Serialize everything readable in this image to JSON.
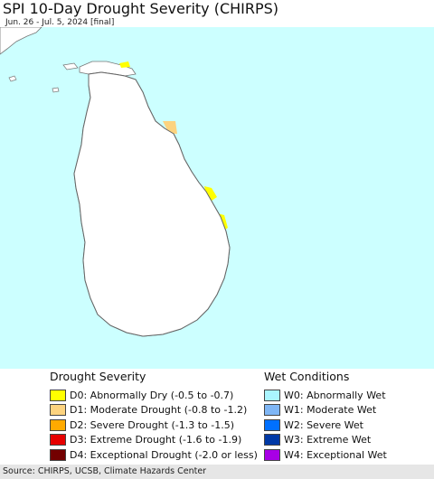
{
  "title": "SPI 10-Day Drought Severity (CHIRPS)",
  "subtitle": "Jun. 26 - Jul. 5, 2024 [final]",
  "colors": {
    "water": "#ccffff",
    "land": "#ffffff",
    "boundary": "#888888",
    "d0": "#ffff00",
    "d1": "#fcd37f",
    "d2": "#ffaa00",
    "d3": "#e60000",
    "d4": "#730000",
    "w0": "#aaf5ff",
    "w1": "#7fb6f5",
    "w2": "#0070ff",
    "w3": "#0039a6",
    "w4": "#a800e6"
  },
  "legend": {
    "drought": {
      "heading": "Drought Severity",
      "items": [
        {
          "label": "D0: Abnormally Dry (-0.5 to -0.7)",
          "color": "#ffff00"
        },
        {
          "label": "D1: Moderate Drought (-0.8 to -1.2)",
          "color": "#fcd37f"
        },
        {
          "label": "D2: Severe Drought (-1.3 to -1.5)",
          "color": "#ffaa00"
        },
        {
          "label": "D3: Extreme Drought (-1.6 to -1.9)",
          "color": "#e60000"
        },
        {
          "label": "D4: Exceptional Drought (-2.0 or less)",
          "color": "#730000"
        }
      ]
    },
    "wet": {
      "heading": "Wet Conditions",
      "items": [
        {
          "label": "W0: Abnormally Wet",
          "color": "#aaf5ff"
        },
        {
          "label": "W1: Moderate Wet",
          "color": "#7fb6f5"
        },
        {
          "label": "W2: Severe Wet",
          "color": "#0070ff"
        },
        {
          "label": "W3: Extreme Wet",
          "color": "#0039a6"
        },
        {
          "label": "W4: Exceptional Wet",
          "color": "#a800e6"
        }
      ]
    }
  },
  "source": "Source: CHIRPS, UCSB, Climate Hazards Center"
}
